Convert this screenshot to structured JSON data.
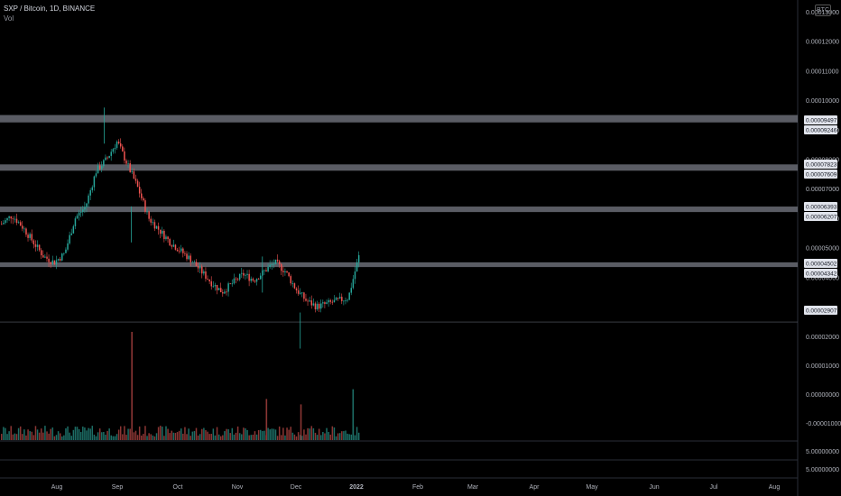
{
  "header": {
    "symbol_line": "SXP / Bitcoin, 1D, BINANCE",
    "vol_label": "Vol",
    "currency_badge": "BTC"
  },
  "chart_data": {
    "type": "candlestick",
    "price_axis_labels": [
      "0.00013000",
      "0.00012000",
      "0.00011000",
      "0.00010000",
      "0.00009000",
      "0.00008000",
      "0.00007000",
      "0.00006000",
      "0.00005000",
      "0.00004000"
    ],
    "volume_axis_labels": [
      "0.00002000",
      "0.00001000",
      "0.00000000",
      "-0.00001000"
    ],
    "extra_axis_labels": [
      "5.00000000",
      "5.00000000"
    ],
    "time_labels": [
      "Aug",
      "Sep",
      "Oct",
      "Nov",
      "Dec",
      "2022",
      "Feb",
      "Mar",
      "Apr",
      "May",
      "Jun",
      "Jul",
      "Aug"
    ],
    "price_badges": [
      "0.00009497",
      "0.00009246",
      "0.00007823",
      "0.00007609",
      "0.00006393",
      "0.00006207",
      "0.00004502",
      "0.00004342",
      "0.00002907"
    ],
    "horizontal_zones": [
      {
        "top": 9.497e-05,
        "bottom": 9.246e-05
      },
      {
        "top": 7.823e-05,
        "bottom": 7.609e-05
      },
      {
        "top": 6.393e-05,
        "bottom": 6.207e-05
      },
      {
        "top": 4.502e-05,
        "bottom": 4.342e-05
      }
    ],
    "last_price_line": 2.907e-05,
    "colors": {
      "up": "#26a69a",
      "down": "#ef5350",
      "zone": "#787b86",
      "vol_up": "#1d6e66",
      "vol_down": "#8b3634"
    },
    "price_points": [
      5.8e-05,
      6.1e-05,
      5.7e-05,
      5.2e-05,
      4.7e-05,
      4.5e-05,
      4.8e-05,
      6e-05,
      6.4e-05,
      7.6e-05,
      8e-05,
      8.6e-05,
      7.8e-05,
      7e-05,
      6e-05,
      5.6e-05,
      5.2e-05,
      4.9e-05,
      4.6e-05,
      4.2e-05,
      3.8e-05,
      3.5e-05,
      3.8e-05,
      4.1e-05,
      3.9e-05,
      4.2e-05,
      4.5e-05,
      4.2e-05,
      3.6e-05,
      3.2e-05,
      3e-05,
      3.1e-05,
      3.2e-05,
      3.3e-05,
      4.7e-05
    ],
    "price_spikes": [
      {
        "x": 0.124,
        "high": 9.75e-05
      },
      {
        "x": 0.156,
        "high": 6.4e-05
      },
      {
        "x": 0.312,
        "high": 4.7e-05
      },
      {
        "x": 0.357,
        "high": 2.8e-05
      }
    ],
    "volume_spikes": [
      {
        "x": 0.156,
        "value": 1.0
      },
      {
        "x": 0.316,
        "value": 0.38
      },
      {
        "x": 0.357,
        "value": 0.33
      },
      {
        "x": 0.419,
        "value": 0.47
      }
    ]
  }
}
